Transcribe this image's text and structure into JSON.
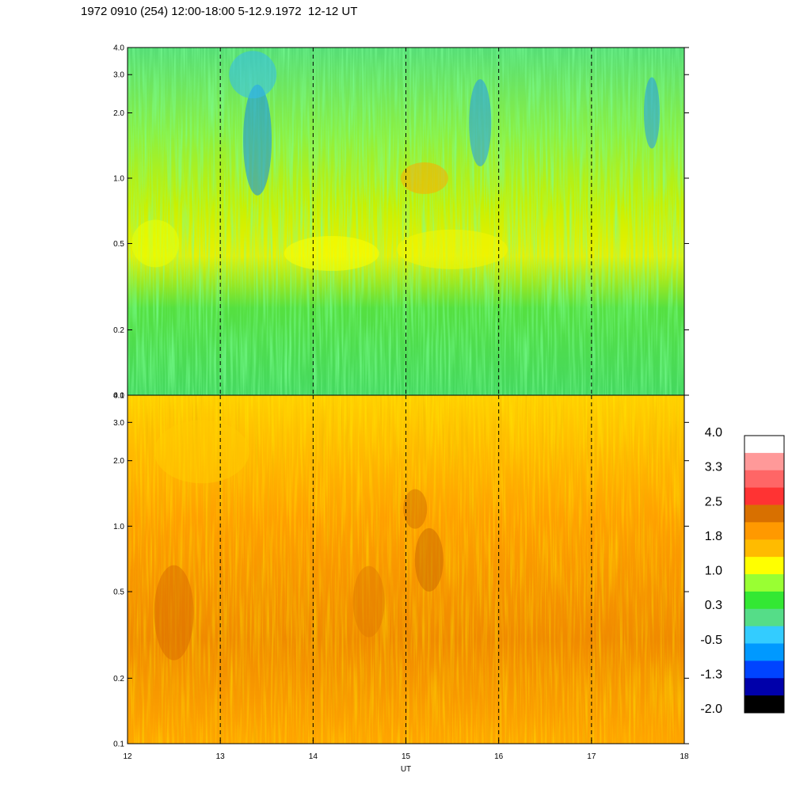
{
  "title": "1972 0910 (254) 12:00-18:00 5-12.9.1972  12-12 UT",
  "chart_data": [
    {
      "type": "heatmap",
      "panel": "top",
      "x_range": [
        12,
        18
      ],
      "y_range": [
        0.1,
        4.0
      ],
      "y_scale": "log",
      "y_tick_labels": [
        "0.1",
        "0.2",
        "0.5",
        "1.0",
        "2.0",
        "3.0",
        "4.0"
      ],
      "y_ticks": [
        0.1,
        0.2,
        0.5,
        1.0,
        2.0,
        3.0,
        4.0
      ],
      "dashed_vertical_lines": [
        13,
        14,
        15,
        16,
        17
      ],
      "dominant_level": 0.5
    },
    {
      "type": "heatmap",
      "panel": "bottom",
      "x_range": [
        12,
        18
      ],
      "y_range": [
        0.1,
        4.0
      ],
      "y_scale": "log",
      "y_tick_labels": [
        "0.1",
        "0.2",
        "0.5",
        "1.0",
        "2.0",
        "3.0",
        "4.0"
      ],
      "y_ticks": [
        0.1,
        0.2,
        0.5,
        1.0,
        2.0,
        3.0,
        4.0
      ],
      "x_ticks": [
        12,
        13,
        14,
        15,
        16,
        17,
        18
      ],
      "x_tick_labels": [
        "12",
        "13",
        "14",
        "15",
        "16",
        "17",
        "18"
      ],
      "xlabel": "UT",
      "dashed_vertical_lines": [
        13,
        14,
        15,
        16,
        17
      ],
      "dominant_level": 1.8
    }
  ],
  "colorbar": {
    "labels": [
      "4.0",
      "3.3",
      "2.5",
      "1.8",
      "1.0",
      "0.3",
      "-0.5",
      "-1.3",
      "-2.0"
    ],
    "colors": [
      "#ffffff",
      "#ff9999",
      "#ff6666",
      "#ff3333",
      "#d87000",
      "#ff9900",
      "#ffbb00",
      "#ffff00",
      "#99ff33",
      "#33e833",
      "#55dd88",
      "#33ccff",
      "#0099ff",
      "#0044ff",
      "#0000aa",
      "#000000"
    ]
  }
}
